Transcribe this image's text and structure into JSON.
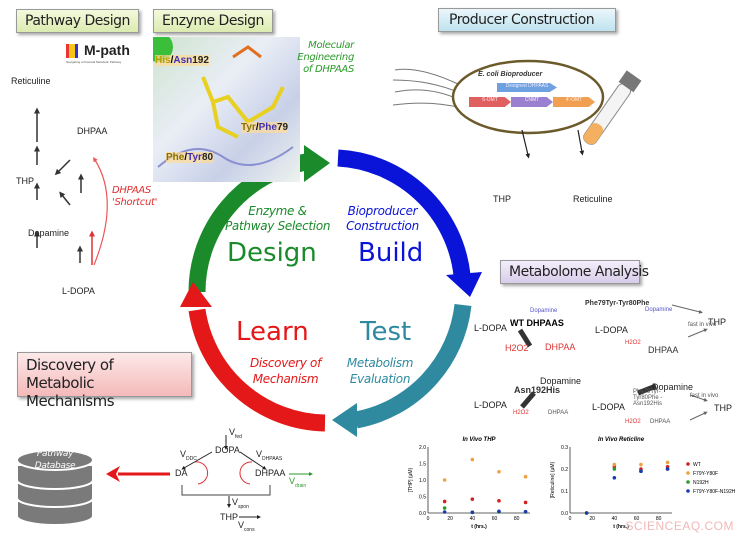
{
  "headers": {
    "pathway_design": "Pathway Design",
    "enzyme_design": "Enzyme Design",
    "producer_construction": "Producer Construction",
    "metabolome_analysis": "Metabolome Analysis",
    "discovery": "Discovery of Metabolic Mechanisms"
  },
  "cycle": {
    "design": {
      "title": "Design",
      "subtitle1": "Enzyme &",
      "subtitle2": "Pathway Selection",
      "color": "#1a8a2a"
    },
    "build": {
      "title": "Build",
      "subtitle1": "Bioproducer",
      "subtitle2": "Construction",
      "color": "#0a14d8"
    },
    "test": {
      "title": "Test",
      "subtitle1": "Metabolism",
      "subtitle2": "Evaluation",
      "color": "#2f8aa0"
    },
    "learn": {
      "title": "Learn",
      "subtitle1": "Discovery of",
      "subtitle2": "Mechanism",
      "color": "#e41818"
    }
  },
  "pathway": {
    "logo": "M-path",
    "logo_sub": "Navigating a Potential Metabolic Pathway",
    "reticuline": "Reticuline",
    "dhpaa": "DHPAA",
    "thp": "THP",
    "dopamine": "Dopamine",
    "ldopa": "L-DOPA",
    "shortcut1": "DHPAAS",
    "shortcut2": "'Shortcut'"
  },
  "enzyme": {
    "res1a": "His",
    "res1b": "Asn",
    "res1c": "192",
    "res2a": "Tyr",
    "res2b": "Phe",
    "res2c": "79",
    "res3a": "Phe",
    "res3b": "Tyr",
    "res3c": "80",
    "note1": "Molecular",
    "note2": "Engineering",
    "note3": "of DHPAAS"
  },
  "producer": {
    "cell_label": "E. coli Bioproducer",
    "gene_top": "Designed DHPAAS",
    "genes": [
      "6-OMT",
      "CNMT",
      "4'-OMT"
    ],
    "thp": "THP",
    "reticuline": "Reticuline"
  },
  "metabolome": {
    "panels": [
      {
        "title": "WT DHPAAS",
        "ldopa": "L-DOPA",
        "dopamine": "Dopamine",
        "dhpaa": "DHPAA",
        "h2o2": "H2O2"
      },
      {
        "title": "Phe79Tyr-Tyr80Phe",
        "ldopa": "L-DOPA",
        "dopamine": "Dopamine",
        "dhpaa": "DHPAA",
        "h2o2": "H2O2",
        "thp": "THP",
        "note": "fast in vivo"
      },
      {
        "title": "Asn192His",
        "ldopa": "L-DOPA",
        "dopamine": "Dopamine",
        "dhpaa": "DHPAA",
        "h2o2": "H2O2"
      },
      {
        "title": "Phe79Tyr-Tyr80Phe -Asn192His",
        "ldopa": "L-DOPA",
        "dopamine": "Dopamine",
        "dhpaa": "DHPAA",
        "h2o2": "H2O2",
        "thp": "THP",
        "note": "fast in vivo"
      }
    ]
  },
  "mechanism": {
    "vfed": "fed",
    "dopa": "DOPA",
    "vddc": "DDC",
    "vdhpaas": "DHPAAS",
    "da": "DA",
    "dhpaa": "DHPAA",
    "vdrain": "drain",
    "vspon": "spon",
    "thp": "THP",
    "vcons": "cons",
    "v": "V",
    "database1": "Pathway",
    "database2": "Database"
  },
  "chart_data": [
    {
      "type": "scatter",
      "title": "In Vivo THP",
      "xlabel": "t (hrs.)",
      "ylabel": "[THP] (μM)",
      "xlim": [
        0,
        92
      ],
      "ylim": [
        0,
        2.0
      ],
      "xticks": [
        "0",
        "20",
        "40",
        "60",
        "80"
      ],
      "yticks": [
        "0.0",
        "0.5",
        "1.0",
        "1.5",
        "2.0"
      ],
      "x": [
        15,
        40,
        64,
        88
      ],
      "series": [
        {
          "name": "WT",
          "color": "#d42020",
          "values": [
            0.35,
            0.42,
            0.37,
            0.32
          ]
        },
        {
          "name": "F79Y-Y80F",
          "color": "#f0a040",
          "values": [
            1.0,
            1.62,
            1.25,
            1.1
          ]
        },
        {
          "name": "N192H",
          "color": "#2a9a2a",
          "values": [
            0.15,
            0.02,
            0.03,
            0.03
          ]
        },
        {
          "name": "F79Y-Y80F-N192H",
          "color": "#1a3ab0",
          "values": [
            0.03,
            0.02,
            0.05,
            0.04
          ]
        }
      ]
    },
    {
      "type": "scatter",
      "title": "In Vivo Reticline",
      "xlabel": "t (hrs.)",
      "ylabel": "[Reticuline] (μM)",
      "xlim": [
        0,
        92
      ],
      "ylim": [
        0,
        0.3
      ],
      "xticks": [
        "0",
        "20",
        "40",
        "60",
        "80"
      ],
      "yticks": [
        "0.0",
        "0.1",
        "0.2",
        "0.3"
      ],
      "x": [
        15,
        40,
        64,
        88
      ],
      "legend": "right",
      "series": [
        {
          "name": "WT",
          "color": "#d42020",
          "values": [
            0,
            0.21,
            0.2,
            0.21
          ]
        },
        {
          "name": "F79Y-Y80F",
          "color": "#f0a040",
          "values": [
            0,
            0.22,
            0.22,
            0.23
          ]
        },
        {
          "name": "N192H",
          "color": "#2a9a2a",
          "values": [
            0,
            0.2,
            0.19,
            0.2
          ]
        },
        {
          "name": "F79Y-Y80F-N192H",
          "color": "#1a3ab0",
          "values": [
            0,
            0.16,
            0.19,
            0.2
          ]
        }
      ]
    }
  ],
  "watermark": "SCIENCEAQ.COM"
}
